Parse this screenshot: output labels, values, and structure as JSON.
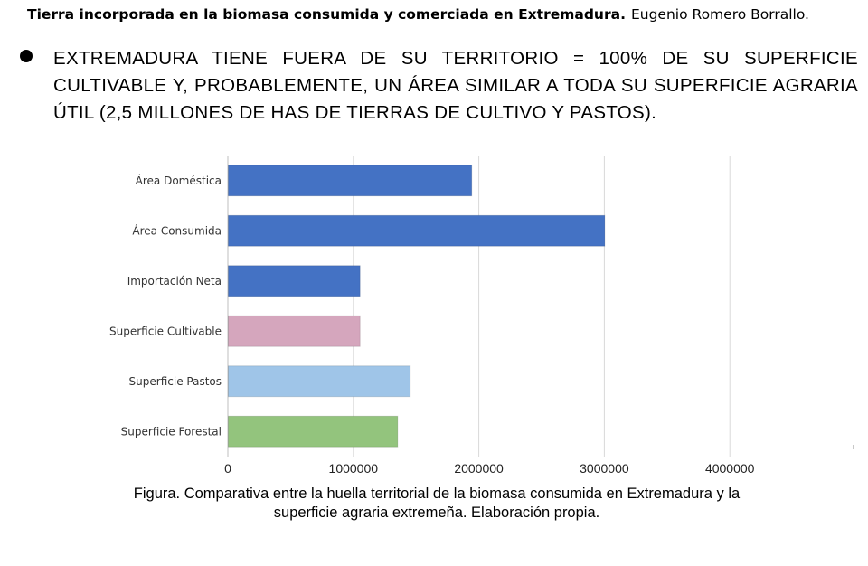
{
  "header": {
    "title": "Tierra incorporada  en la biomasa consumida y comerciada en Extremadura.",
    "author": "Eugenio Romero Borrallo."
  },
  "bullet": {
    "text": "EXTREMADURA TIENE FUERA DE SU TERRITORIO = 100% DE SU SUPERFICIE CULTIVABLE Y, PROBABLEMENTE, UN ÁREA SIMILAR A TODA SU SUPERFICIE AGRARIA ÚTIL (2,5 MILLONES DE HAS DE TIERRAS DE CULTIVO Y PASTOS)."
  },
  "chart_data": {
    "type": "bar",
    "orientation": "horizontal",
    "categories": [
      "Área Doméstica",
      "Área Consumida",
      "Importación Neta",
      "Superficie Cultivable",
      "Superficie Pastos",
      "Superficie Forestal"
    ],
    "values": [
      1940000,
      3000000,
      1050000,
      1050000,
      1450000,
      1350000
    ],
    "colors": [
      "#4472c4",
      "#4472c4",
      "#4472c4",
      "#d5a6bd",
      "#9fc5e8",
      "#93c47d"
    ],
    "xticks": [
      "0",
      "1000000",
      "2000000",
      "3000000",
      "4000000"
    ],
    "xlim": [
      0,
      5000000
    ],
    "grid": true
  },
  "caption": {
    "line1": "Figura. Comparativa entre la huella territorial de la biomasa consumida en Extremadura y la",
    "line2": "superficie agraria extremeña. Elaboración propia."
  }
}
